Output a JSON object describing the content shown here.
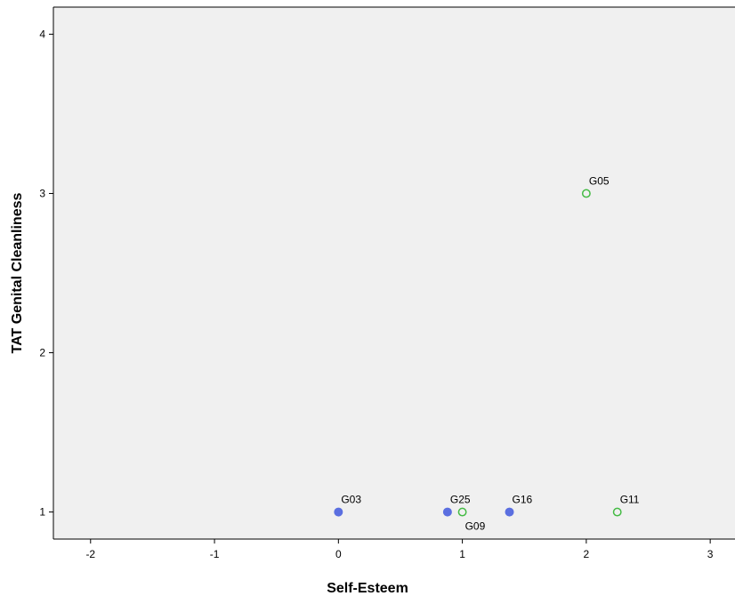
{
  "chart_data": {
    "type": "scatter",
    "title": "",
    "xlabel": "Self-Esteem",
    "ylabel": "TAT Genital Cleanliness",
    "xlim": [
      -2.3,
      3.2
    ],
    "ylim": [
      0.83,
      4.17
    ],
    "x_ticks": [
      -2,
      -1,
      0,
      1,
      2,
      3
    ],
    "y_ticks": [
      1,
      2,
      3,
      4
    ],
    "grid": false,
    "plot_background": "#F0F0F0",
    "series": [
      {
        "marker": "filled-circle",
        "color": "#5B6FE0",
        "points": [
          {
            "label": "G03",
            "x": 0.0,
            "y": 1
          },
          {
            "label": "G25",
            "x": 0.88,
            "y": 1
          },
          {
            "label": "G16",
            "x": 1.38,
            "y": 1
          }
        ]
      },
      {
        "marker": "open-circle",
        "color": "#44BB44",
        "points": [
          {
            "label": "G09",
            "x": 1.0,
            "y": 1
          },
          {
            "label": "G05",
            "x": 2.0,
            "y": 3
          },
          {
            "label": "G11",
            "x": 2.25,
            "y": 1
          }
        ]
      }
    ]
  }
}
